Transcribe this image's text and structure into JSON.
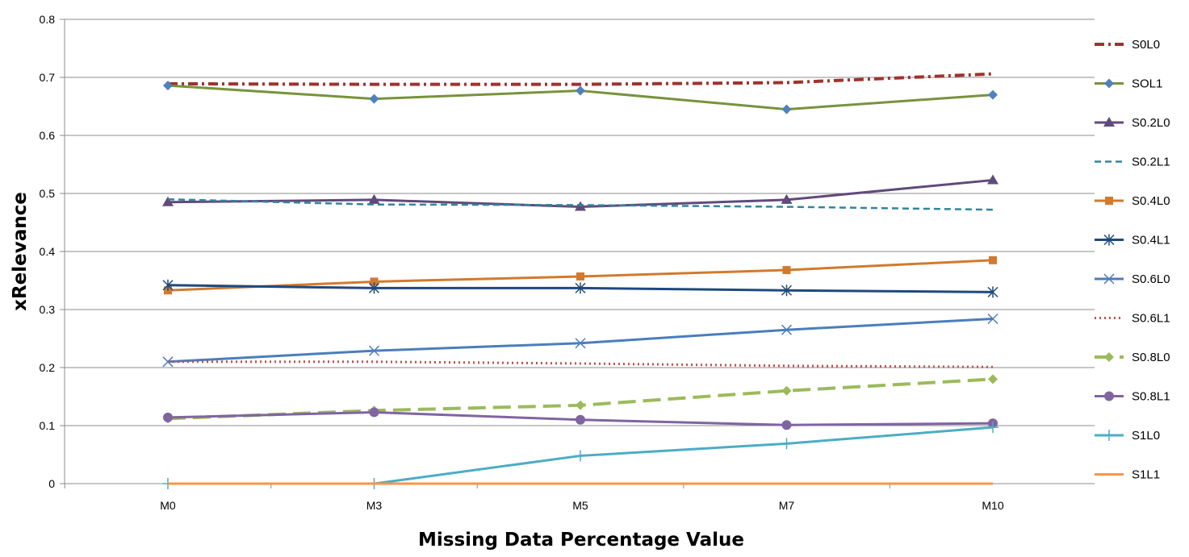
{
  "chart_data": {
    "type": "line",
    "title": "",
    "xlabel": "Missing Data Percentage Value",
    "ylabel": "xRelevance",
    "categories": [
      "M0",
      "M3",
      "M5",
      "M7",
      "M10"
    ],
    "ylim": [
      0,
      0.8
    ],
    "yticks": [
      0,
      0.1,
      0.2,
      0.3,
      0.4,
      0.5,
      0.6,
      0.7,
      0.8
    ],
    "ytick_labels": [
      "0",
      "0.1",
      "0.2",
      "0.3",
      "0.4",
      "0.5",
      "0.6",
      "0.7",
      "0.8"
    ],
    "grid": "horizontal",
    "legend": "right",
    "series": [
      {
        "name": "S0L0",
        "values": [
          0.689,
          0.688,
          0.688,
          0.691,
          0.706
        ],
        "color": "#A0322D",
        "dash": "dashdot",
        "marker": "none"
      },
      {
        "name": "SOL1",
        "values": [
          0.686,
          0.663,
          0.677,
          0.645,
          0.67
        ],
        "color": "#77933C",
        "dash": "solid",
        "marker": "diamond"
      },
      {
        "name": "S0.2L0",
        "values": [
          0.485,
          0.489,
          0.477,
          0.489,
          0.523
        ],
        "color": "#604A7B",
        "dash": "solid",
        "marker": "triangle"
      },
      {
        "name": "S0.2L1",
        "values": [
          0.49,
          0.481,
          0.48,
          0.477,
          0.472
        ],
        "color": "#31859C",
        "dash": "dash",
        "marker": "none"
      },
      {
        "name": "S0.4L0",
        "values": [
          0.333,
          0.348,
          0.357,
          0.368,
          0.385
        ],
        "color": "#D17A2E",
        "dash": "solid",
        "marker": "square"
      },
      {
        "name": "S0.4L1",
        "values": [
          0.342,
          0.337,
          0.337,
          0.333,
          0.33
        ],
        "color": "#1F497D",
        "dash": "solid",
        "marker": "asterisk"
      },
      {
        "name": "S0.6L0",
        "values": [
          0.21,
          0.229,
          0.242,
          0.265,
          0.284
        ],
        "color": "#4A7EBB",
        "dash": "solid",
        "marker": "x"
      },
      {
        "name": "S0.6L1",
        "values": [
          0.21,
          0.21,
          0.207,
          0.203,
          0.201
        ],
        "color": "#C0504D",
        "dash": "dot",
        "marker": "none"
      },
      {
        "name": "S0.8L0",
        "values": [
          0.112,
          0.126,
          0.135,
          0.16,
          0.18
        ],
        "color": "#9BBB59",
        "dash": "longdash",
        "marker": "diamond"
      },
      {
        "name": "S0.8L1",
        "values": [
          0.114,
          0.123,
          0.11,
          0.101,
          0.104
        ],
        "color": "#8064A2",
        "dash": "solid",
        "marker": "circle"
      },
      {
        "name": "S1L0",
        "values": [
          0.0,
          0.0,
          0.048,
          0.069,
          0.097
        ],
        "color": "#4BACC6",
        "dash": "solid",
        "marker": "plus"
      },
      {
        "name": "S1L1",
        "values": [
          0.0,
          0.0,
          0.0,
          0.0,
          0.0
        ],
        "color": "#F79646",
        "dash": "solid",
        "marker": "none"
      }
    ]
  }
}
